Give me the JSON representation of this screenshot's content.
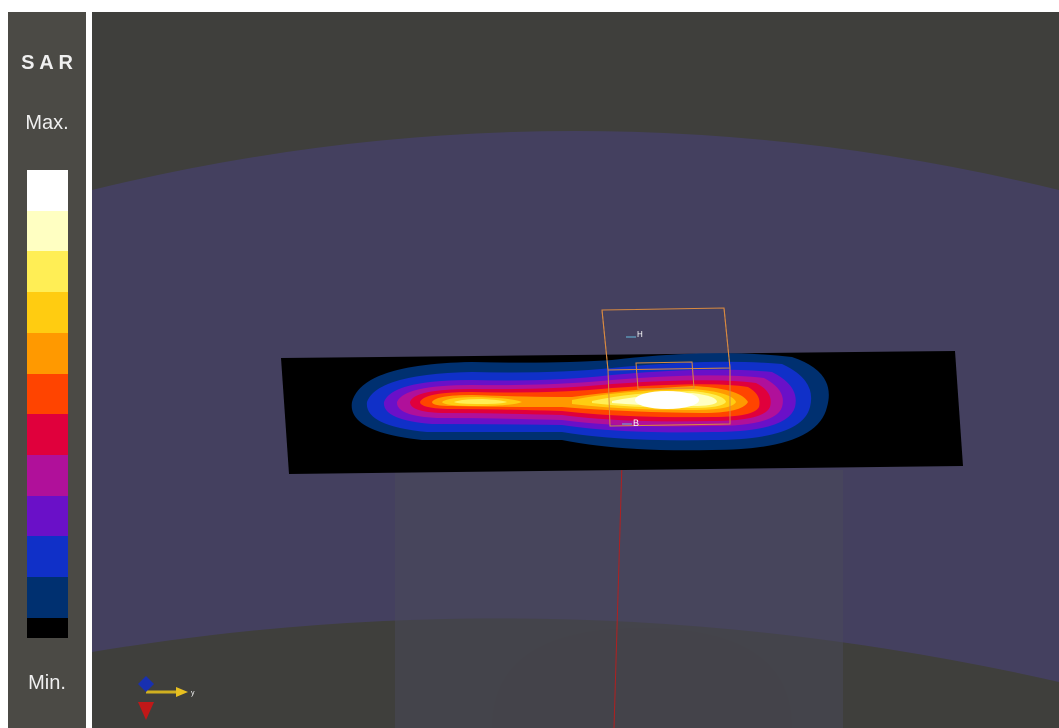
{
  "legend": {
    "title": "S A R",
    "max_label": "Max.",
    "min_label": "Min."
  },
  "viewport": {
    "labels": {
      "top_marker": "H",
      "bottom_marker": "B",
      "axis_y": "y"
    }
  }
}
